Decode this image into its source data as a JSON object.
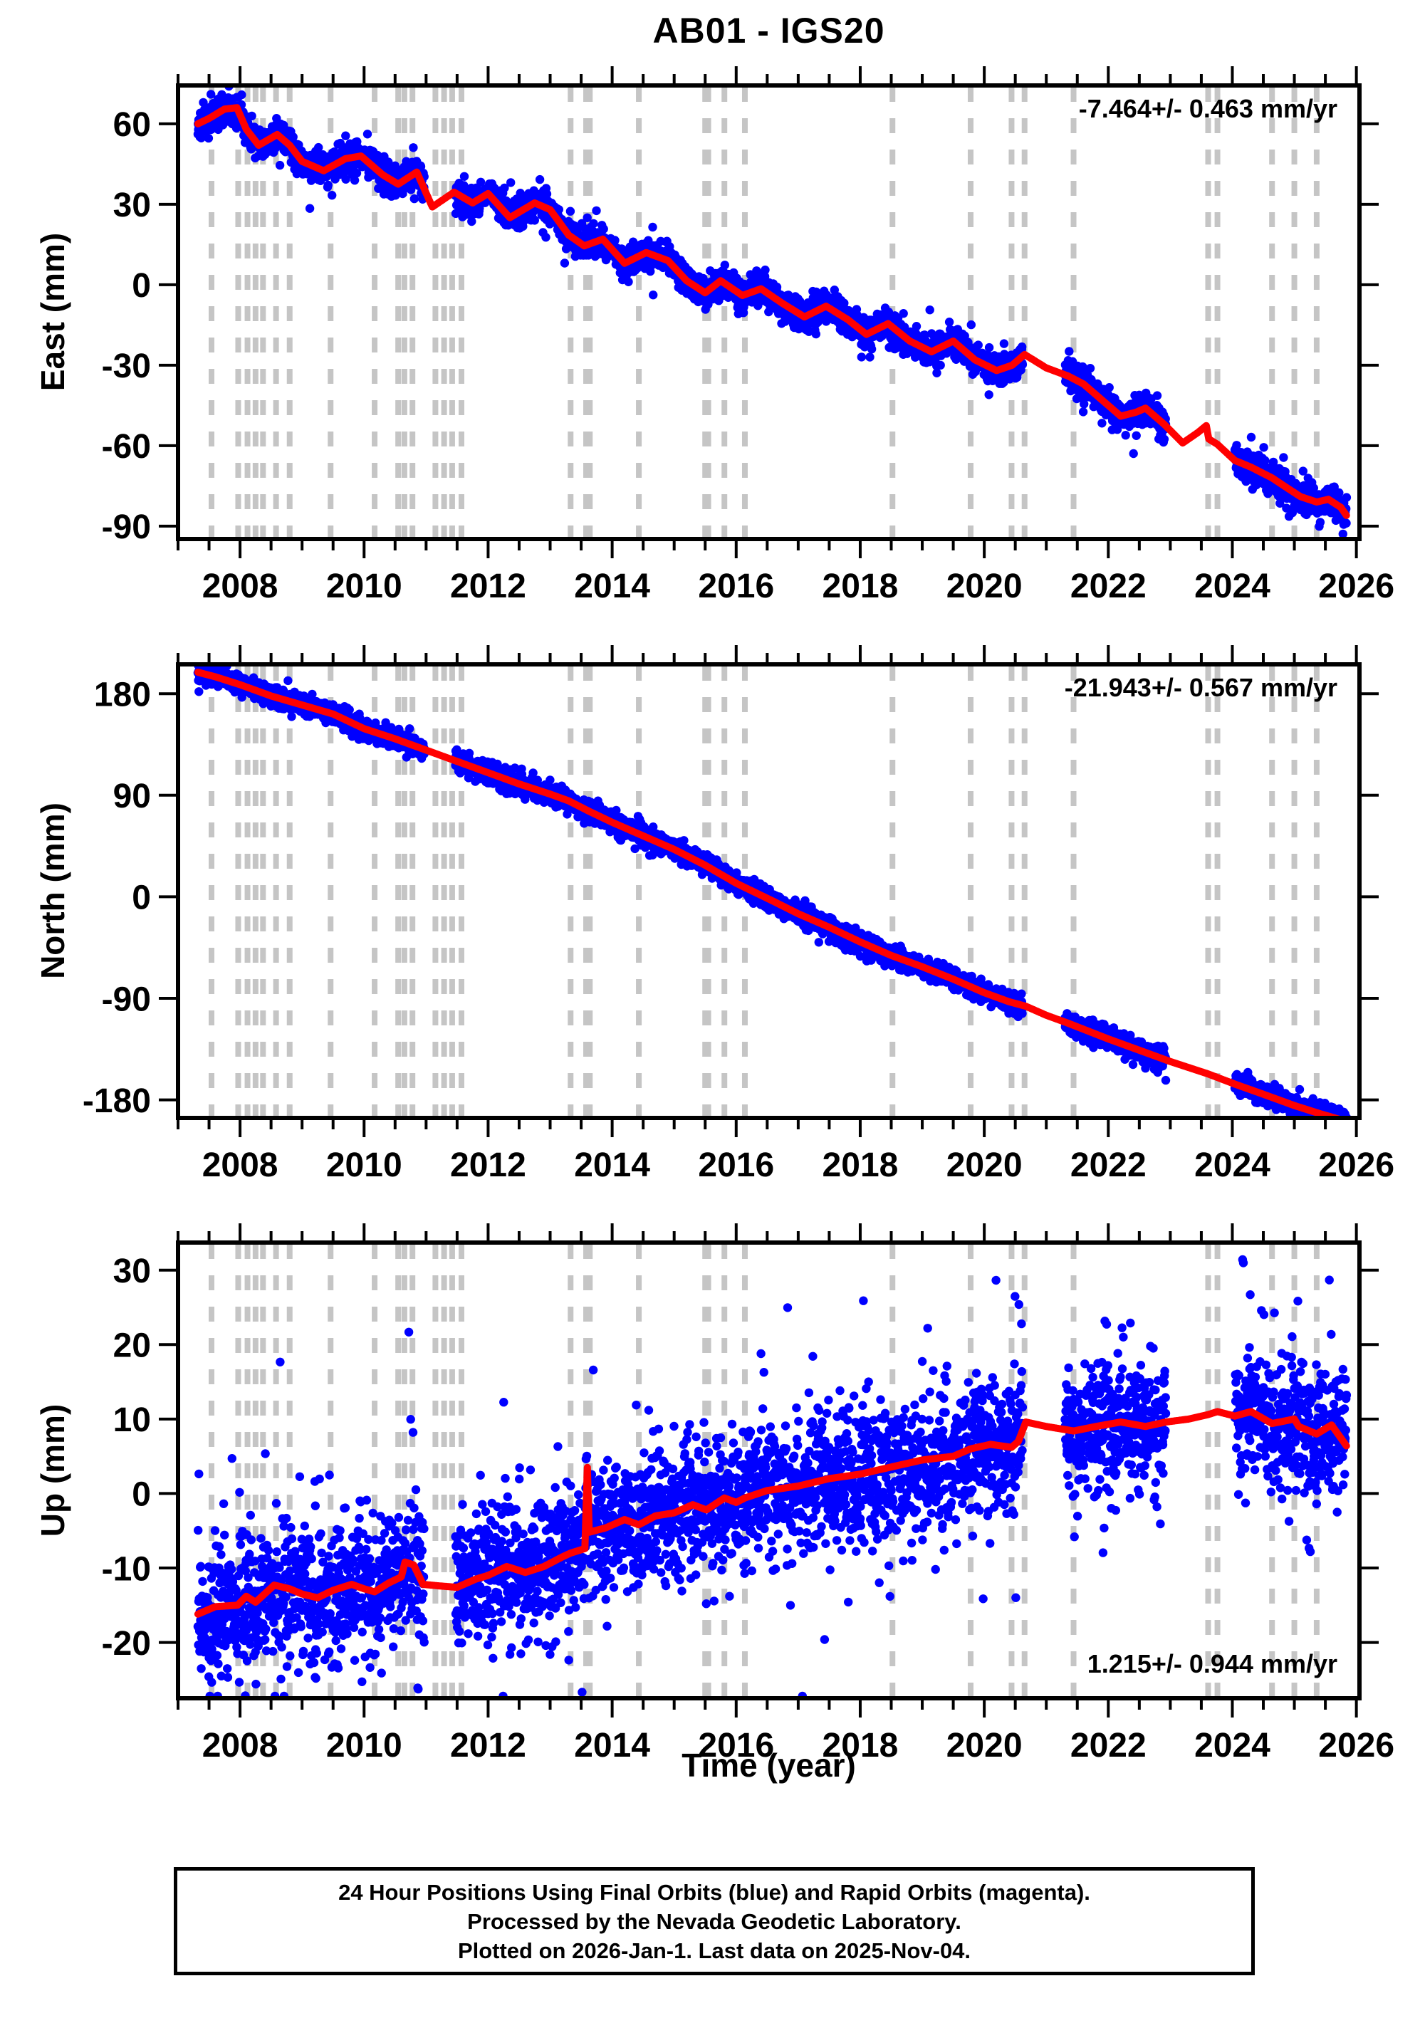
{
  "title": "AB01 - IGS20",
  "xlabel": "Time (year)",
  "footer": {
    "line1": "24 Hour Positions Using Final Orbits (blue) and Rapid Orbits (magenta).",
    "line2": "Processed by the Nevada Geodetic Laboratory.",
    "line3": "Plotted on 2026-Jan-1. Last data on 2025-Nov-04."
  },
  "colors": {
    "final_orbits_points": "#0000ff",
    "rapid_orbits_points": "#ff00ff",
    "model_line": "#ff0000",
    "step_lines": "#c5c5c5",
    "axis": "#000000"
  },
  "chart_data": {
    "type": "scatter",
    "x_axis": {
      "label": "Time (year)",
      "min": 2007.0,
      "max": 2026.05,
      "major_ticks": [
        2008,
        2010,
        2012,
        2014,
        2016,
        2018,
        2020,
        2022,
        2024,
        2026
      ],
      "minor_tick_step": 0.5
    },
    "step_lines_years": [
      2007.54,
      2007.97,
      2008.12,
      2008.25,
      2008.37,
      2008.58,
      2008.8,
      2009.46,
      2010.17,
      2010.55,
      2010.65,
      2010.78,
      2011.15,
      2011.29,
      2011.42,
      2011.57,
      2013.33,
      2013.58,
      2013.64,
      2014.43,
      2015.5,
      2015.55,
      2015.81,
      2016.14,
      2018.52,
      2019.78,
      2020.44,
      2020.65,
      2021.44,
      2023.61,
      2023.76,
      2024.64,
      2025.0,
      2025.36
    ],
    "data_gaps": [
      [
        2010.97,
        2011.47
      ],
      [
        2020.62,
        2021.3
      ],
      [
        2022.93,
        2024.04
      ]
    ],
    "scatter_gen": {
      "start": 2007.32,
      "end": 2025.843,
      "step_years": 0.0042,
      "seed": 20260101
    },
    "panels": [
      {
        "id": "east",
        "ylabel": "East (mm)",
        "rate_label": "-7.464+/- 0.463 mm/yr",
        "rate_position": "top-right",
        "ylim": {
          "min": -94.8,
          "max": 74.3
        },
        "yticks": [
          -90,
          -60,
          -30,
          0,
          30,
          60
        ],
        "noise_mm": 2.8,
        "outlier_mm": 5.5,
        "outlier_prob": 0.05,
        "model": [
          [
            2007.32,
            60
          ],
          [
            2007.5,
            62
          ],
          [
            2007.75,
            65.5
          ],
          [
            2007.95,
            66
          ],
          [
            2008.1,
            58
          ],
          [
            2008.3,
            52
          ],
          [
            2008.6,
            56
          ],
          [
            2008.8,
            52
          ],
          [
            2009.0,
            46
          ],
          [
            2009.35,
            42.5
          ],
          [
            2009.7,
            47
          ],
          [
            2009.95,
            48
          ],
          [
            2010.3,
            41
          ],
          [
            2010.55,
            37.5
          ],
          [
            2010.85,
            42
          ],
          [
            2011.1,
            29
          ],
          [
            2011.45,
            34.5
          ],
          [
            2011.75,
            30.5
          ],
          [
            2012.0,
            34
          ],
          [
            2012.35,
            25
          ],
          [
            2012.75,
            30.5
          ],
          [
            2013.0,
            28
          ],
          [
            2013.3,
            18.5
          ],
          [
            2013.55,
            14.5
          ],
          [
            2013.85,
            17
          ],
          [
            2014.2,
            8
          ],
          [
            2014.55,
            12
          ],
          [
            2014.9,
            9
          ],
          [
            2015.2,
            1.5
          ],
          [
            2015.5,
            -3
          ],
          [
            2015.75,
            1.5
          ],
          [
            2016.1,
            -4
          ],
          [
            2016.4,
            -1.5
          ],
          [
            2016.75,
            -7
          ],
          [
            2017.1,
            -12
          ],
          [
            2017.45,
            -8
          ],
          [
            2017.8,
            -13
          ],
          [
            2018.1,
            -18.5
          ],
          [
            2018.45,
            -14.5
          ],
          [
            2018.8,
            -21
          ],
          [
            2019.15,
            -25
          ],
          [
            2019.5,
            -21
          ],
          [
            2019.85,
            -28
          ],
          [
            2020.2,
            -32
          ],
          [
            2020.45,
            -30
          ],
          [
            2020.65,
            -26
          ],
          [
            2021.0,
            -31
          ],
          [
            2021.35,
            -34
          ],
          [
            2021.6,
            -37
          ],
          [
            2021.9,
            -43
          ],
          [
            2022.2,
            -49
          ],
          [
            2022.45,
            -47.5
          ],
          [
            2022.6,
            -46
          ],
          [
            2022.9,
            -52
          ],
          [
            2023.2,
            -59
          ],
          [
            2023.45,
            -55
          ],
          [
            2023.58,
            -52.5
          ],
          [
            2023.62,
            -57.5
          ],
          [
            2023.76,
            -59.5
          ],
          [
            2024.04,
            -65.5
          ],
          [
            2024.3,
            -68
          ],
          [
            2024.64,
            -72
          ],
          [
            2024.9,
            -76
          ],
          [
            2025.1,
            -79
          ],
          [
            2025.36,
            -81
          ],
          [
            2025.55,
            -80
          ],
          [
            2025.75,
            -83
          ],
          [
            2025.84,
            -86
          ]
        ]
      },
      {
        "id": "north",
        "ylabel": "North (mm)",
        "rate_label": "-21.943+/- 0.567 mm/yr",
        "rate_position": "top-right",
        "ylim": {
          "min": -196,
          "max": 206
        },
        "yticks": [
          -180,
          -90,
          0,
          90,
          180
        ],
        "noise_mm": 4.5,
        "outlier_mm": 7.5,
        "outlier_prob": 0.04,
        "model": [
          [
            2007.32,
            199
          ],
          [
            2007.6,
            195
          ],
          [
            2008.0,
            188
          ],
          [
            2008.5,
            178
          ],
          [
            2009.0,
            170
          ],
          [
            2009.5,
            162
          ],
          [
            2010.0,
            149
          ],
          [
            2010.5,
            140
          ],
          [
            2010.8,
            134
          ],
          [
            2011.2,
            126
          ],
          [
            2011.6,
            118
          ],
          [
            2012.0,
            110
          ],
          [
            2012.5,
            100
          ],
          [
            2013.0,
            91
          ],
          [
            2013.3,
            85
          ],
          [
            2013.62,
            76
          ],
          [
            2014.0,
            66
          ],
          [
            2014.5,
            54
          ],
          [
            2015.0,
            42
          ],
          [
            2015.5,
            28
          ],
          [
            2016.0,
            12
          ],
          [
            2016.3,
            4
          ],
          [
            2016.6,
            -4
          ],
          [
            2017.0,
            -15
          ],
          [
            2017.5,
            -27
          ],
          [
            2018.0,
            -40
          ],
          [
            2018.5,
            -52
          ],
          [
            2019.0,
            -62
          ],
          [
            2019.5,
            -73
          ],
          [
            2020.0,
            -85
          ],
          [
            2020.4,
            -93
          ],
          [
            2020.67,
            -97
          ],
          [
            2021.0,
            -105
          ],
          [
            2021.35,
            -112
          ],
          [
            2022.0,
            -126
          ],
          [
            2022.5,
            -136
          ],
          [
            2023.0,
            -146
          ],
          [
            2023.61,
            -157
          ],
          [
            2024.04,
            -166
          ],
          [
            2024.5,
            -175
          ],
          [
            2025.0,
            -185
          ],
          [
            2025.4,
            -192
          ],
          [
            2025.84,
            -199
          ]
        ]
      },
      {
        "id": "up",
        "ylabel": "Up (mm)",
        "rate_label": "1.215+/- 0.944 mm/yr",
        "rate_position": "bottom-right",
        "ylim": {
          "min": -27.5,
          "max": 33.7
        },
        "yticks": [
          -20,
          -10,
          0,
          10,
          20,
          30
        ],
        "noise_mm": 4.2,
        "outlier_mm": 9.5,
        "outlier_prob": 0.1,
        "model": [
          [
            2007.32,
            -16.2
          ],
          [
            2007.6,
            -15.2
          ],
          [
            2007.96,
            -15.0
          ],
          [
            2008.1,
            -13.8
          ],
          [
            2008.25,
            -14.6
          ],
          [
            2008.55,
            -12.3
          ],
          [
            2008.8,
            -12.8
          ],
          [
            2009.0,
            -13.5
          ],
          [
            2009.25,
            -14.0
          ],
          [
            2009.5,
            -13.0
          ],
          [
            2009.8,
            -12.2
          ],
          [
            2010.0,
            -12.8
          ],
          [
            2010.17,
            -13.2
          ],
          [
            2010.4,
            -12.0
          ],
          [
            2010.6,
            -11.2
          ],
          [
            2010.66,
            -9.2
          ],
          [
            2010.8,
            -9.6
          ],
          [
            2010.95,
            -12.2
          ],
          [
            2011.2,
            -12.4
          ],
          [
            2011.5,
            -12.6
          ],
          [
            2011.8,
            -11.5
          ],
          [
            2012.0,
            -11.0
          ],
          [
            2012.3,
            -9.8
          ],
          [
            2012.6,
            -10.6
          ],
          [
            2012.9,
            -9.8
          ],
          [
            2013.2,
            -8.5
          ],
          [
            2013.33,
            -8.0
          ],
          [
            2013.56,
            -7.4
          ],
          [
            2013.6,
            3.5
          ],
          [
            2013.63,
            -5.2
          ],
          [
            2013.9,
            -4.6
          ],
          [
            2014.2,
            -3.5
          ],
          [
            2014.43,
            -4.2
          ],
          [
            2014.7,
            -3.0
          ],
          [
            2015.0,
            -2.6
          ],
          [
            2015.3,
            -1.5
          ],
          [
            2015.52,
            -2.2
          ],
          [
            2015.81,
            -0.6
          ],
          [
            2016.0,
            -1.2
          ],
          [
            2016.14,
            -0.6
          ],
          [
            2016.5,
            0.4
          ],
          [
            2017.0,
            1.0
          ],
          [
            2017.5,
            2.0
          ],
          [
            2018.0,
            2.6
          ],
          [
            2018.52,
            3.6
          ],
          [
            2019.0,
            4.5
          ],
          [
            2019.5,
            5.0
          ],
          [
            2019.78,
            6.0
          ],
          [
            2020.1,
            6.6
          ],
          [
            2020.44,
            6.2
          ],
          [
            2020.55,
            7.0
          ],
          [
            2020.67,
            9.6
          ],
          [
            2021.0,
            9.0
          ],
          [
            2021.44,
            8.4
          ],
          [
            2021.8,
            9.0
          ],
          [
            2022.2,
            9.6
          ],
          [
            2022.6,
            9.0
          ],
          [
            2022.93,
            9.6
          ],
          [
            2023.3,
            10.0
          ],
          [
            2023.61,
            10.6
          ],
          [
            2023.76,
            11.0
          ],
          [
            2024.04,
            10.4
          ],
          [
            2024.3,
            11.0
          ],
          [
            2024.64,
            9.4
          ],
          [
            2025.0,
            10.0
          ],
          [
            2025.07,
            9.0
          ],
          [
            2025.36,
            8.0
          ],
          [
            2025.6,
            9.2
          ],
          [
            2025.84,
            6.4
          ]
        ]
      }
    ]
  }
}
